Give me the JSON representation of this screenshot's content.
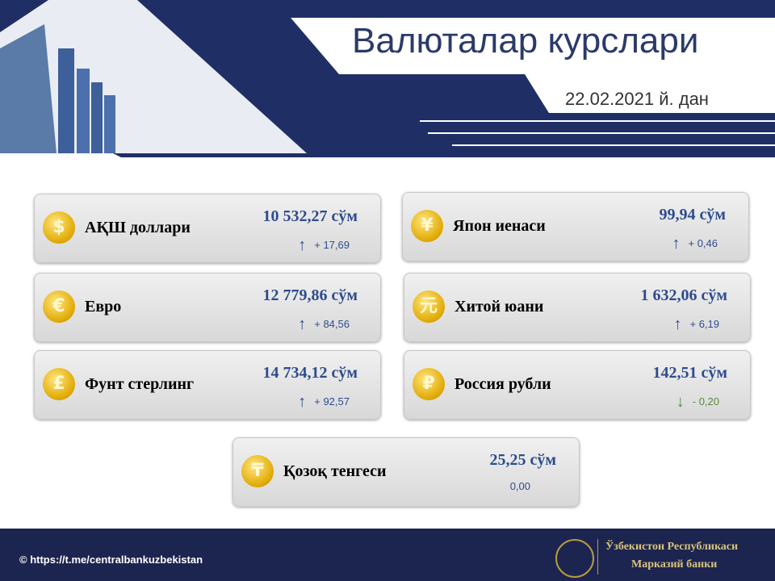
{
  "header": {
    "title": "Валюталар курслари",
    "date": "22.02.2021 й. дан"
  },
  "currencies": [
    {
      "symbol": "$",
      "name": "АҚШ доллари",
      "rate": "10 532,27 сўм",
      "arrow": "↑",
      "change": "+ 17,69"
    },
    {
      "symbol": "¥",
      "name": "Япон иенаси",
      "rate": "99,94 сўм",
      "arrow": "↑",
      "change": "+ 0,46"
    },
    {
      "symbol": "€",
      "name": "Евро",
      "rate": "12 779,86 сўм",
      "arrow": "↑",
      "change": "+ 84,56"
    },
    {
      "symbol": "元",
      "name": "Хитой юани",
      "rate": "1 632,06 сўм",
      "arrow": "↑",
      "change": "+ 6,19"
    },
    {
      "symbol": "£",
      "name": "Фунт стерлинг",
      "rate": "14 734,12 сўм",
      "arrow": "↑",
      "change": "+ 92,57"
    },
    {
      "symbol": "₽",
      "name": "Россия рубли",
      "rate": "142,51 сўм",
      "arrow": "↓",
      "change": "- 0,20"
    },
    {
      "symbol": "₸",
      "name": "Қозоқ тенгеси",
      "rate": "25,25 сўм",
      "change": "0,00"
    }
  ],
  "footer": {
    "link": "© https://t.me/centralbankuzbekistan",
    "bank_line1": "Ўзбекистон Республикаси",
    "bank_line2": "Марказий банки"
  }
}
